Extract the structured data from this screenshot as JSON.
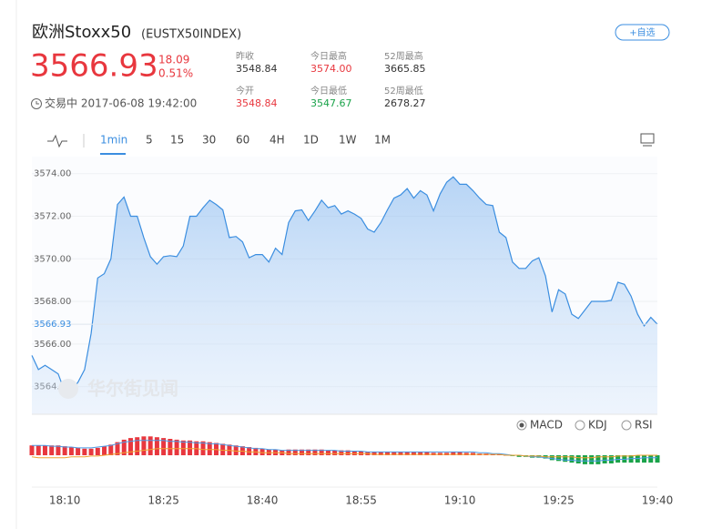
{
  "header": {
    "title": "欧洲Stoxx50",
    "code": "(EUSTX50INDEX)",
    "watch_button": "+自选",
    "price": "3566.93",
    "change": "18.09",
    "change_pct": "0.51%",
    "status": "交易中 2017-06-08 19:42:00",
    "stats": [
      {
        "label": "昨收",
        "value": "3548.84"
      },
      {
        "label": "今日最高",
        "value": "3574.00"
      },
      {
        "label": "52周最高",
        "value": "3665.85"
      },
      {
        "label": "今开",
        "value": "3548.84"
      },
      {
        "label": "今日最低",
        "value": "3547.67"
      },
      {
        "label": "52周最低",
        "value": "2678.27"
      }
    ]
  },
  "tabs": [
    "1min",
    "5",
    "15",
    "30",
    "60",
    "4H",
    "1D",
    "1W",
    "1M"
  ],
  "active_tab": 0,
  "watermark": "华尔街见闻",
  "indicators": [
    "MACD",
    "KDJ",
    "RSI"
  ],
  "active_indicator": 0,
  "chart_data": [
    {
      "type": "line",
      "color": "#3b8ee0",
      "grid": true,
      "categories": [
        null,
        null,
        null,
        null,
        null,
        "18:10",
        null,
        null,
        null,
        null,
        null,
        null,
        null,
        null,
        null,
        null,
        null,
        null,
        null,
        null,
        "18:25",
        null,
        null,
        null,
        null,
        null,
        null,
        null,
        null,
        null,
        null,
        null,
        null,
        null,
        null,
        "18:40",
        null,
        null,
        null,
        null,
        null,
        null,
        null,
        null,
        null,
        null,
        null,
        null,
        null,
        null,
        "18:55",
        null,
        null,
        null,
        null,
        null,
        null,
        null,
        null,
        null,
        null,
        null,
        null,
        null,
        null,
        "19:10",
        null,
        null,
        null,
        null,
        null,
        null,
        null,
        null,
        null,
        null,
        null,
        null,
        null,
        null,
        "19:25",
        null,
        null,
        null,
        null,
        null,
        null,
        null,
        null,
        null,
        null,
        null,
        null,
        null,
        null,
        "19:40"
      ],
      "values": [
        3565.46,
        3564.8,
        3565.0,
        3564.8,
        3564.6,
        3563.75,
        3563.8,
        3564.2,
        3564.8,
        3566.5,
        3569.1,
        3569.3,
        3570.0,
        3572.55,
        3572.9,
        3572.0,
        3572.0,
        3571.0,
        3570.1,
        3569.75,
        3570.1,
        3570.15,
        3570.1,
        3570.6,
        3572.0,
        3572.0,
        3572.4,
        3572.75,
        3572.55,
        3572.3,
        3571.0,
        3571.05,
        3570.8,
        3570.05,
        3570.2,
        3570.2,
        3569.85,
        3570.5,
        3570.2,
        3571.7,
        3572.25,
        3572.3,
        3571.8,
        3572.25,
        3572.75,
        3572.4,
        3572.5,
        3572.1,
        3572.25,
        3572.1,
        3571.9,
        3571.4,
        3571.25,
        3571.7,
        3572.3,
        3572.85,
        3573.0,
        3573.3,
        3572.85,
        3573.2,
        3573.0,
        3572.25,
        3573.05,
        3573.6,
        3573.85,
        3573.5,
        3573.5,
        3573.2,
        3572.85,
        3572.55,
        3572.5,
        3571.25,
        3571.0,
        3569.85,
        3569.55,
        3569.55,
        3569.9,
        3570.05,
        3569.2,
        3567.5,
        3568.55,
        3568.35,
        3567.4,
        3567.2,
        3567.6,
        3568.0,
        3568.0,
        3568.0,
        3568.05,
        3568.9,
        3568.8,
        3568.25,
        3567.4,
        3566.85,
        3567.25,
        3566.93
      ],
      "ylim": [
        3562.7,
        3574.8
      ],
      "yticks": [
        {
          "value": 3564,
          "label": "3564.00"
        },
        {
          "value": 3566,
          "label": "3566.00"
        },
        {
          "value": 3568,
          "label": "3568.00"
        },
        {
          "value": 3570,
          "label": "3570.00"
        },
        {
          "value": 3572,
          "label": "3572.00"
        },
        {
          "value": 3574,
          "label": "3574.00"
        }
      ],
      "last_price": {
        "value": 3566.93,
        "label": "3566.93"
      }
    },
    {
      "type": "macd",
      "up_color": "#e8373e",
      "down_color": "#1aa34a",
      "ylim": [
        -0.5,
        0.5
      ],
      "values": [
        0.12,
        0.12,
        0.12,
        0.12,
        0.12,
        0.11,
        0.1,
        0.09,
        0.08,
        0.08,
        0.09,
        0.11,
        0.13,
        0.16,
        0.19,
        0.21,
        0.22,
        0.23,
        0.23,
        0.22,
        0.21,
        0.2,
        0.19,
        0.18,
        0.18,
        0.17,
        0.17,
        0.16,
        0.15,
        0.14,
        0.13,
        0.12,
        0.11,
        0.1,
        0.09,
        0.08,
        0.07,
        0.07,
        0.06,
        0.07,
        0.07,
        0.07,
        0.07,
        0.07,
        0.07,
        0.06,
        0.06,
        0.06,
        0.06,
        0.05,
        0.05,
        0.04,
        0.04,
        0.04,
        0.04,
        0.04,
        0.04,
        0.04,
        0.04,
        0.04,
        0.04,
        0.03,
        0.03,
        0.03,
        0.04,
        0.04,
        0.03,
        0.03,
        0.02,
        0.02,
        0.01,
        0.01,
        0,
        -0.01,
        -0.02,
        -0.02,
        -0.03,
        -0.03,
        -0.04,
        -0.06,
        -0.07,
        -0.08,
        -0.09,
        -0.1,
        -0.11,
        -0.11,
        -0.11,
        -0.1,
        -0.1,
        -0.09,
        -0.09,
        -0.09,
        -0.09,
        -0.09,
        -0.09,
        -0.09
      ],
      "series": [
        {
          "color": "#4a9be6",
          "values": [
            0.12,
            0.12,
            0.12,
            0.11,
            0.11,
            0.1,
            0.1,
            0.09,
            0.09,
            0.09,
            0.1,
            0.11,
            0.12,
            0.14,
            0.16,
            0.17,
            0.18,
            0.18,
            0.18,
            0.18,
            0.18,
            0.17,
            0.17,
            0.16,
            0.16,
            0.15,
            0.15,
            0.14,
            0.14,
            0.13,
            0.12,
            0.11,
            0.1,
            0.09,
            0.08,
            0.08,
            0.07,
            0.07,
            0.06,
            0.06,
            0.06,
            0.06,
            0.06,
            0.06,
            0.06,
            0.06,
            0.06,
            0.05,
            0.05,
            0.05,
            0.05,
            0.04,
            0.04,
            0.04,
            0.04,
            0.04,
            0.04,
            0.04,
            0.04,
            0.04,
            0.04,
            0.04,
            0.04,
            0.04,
            0.04,
            0.04,
            0.04,
            0.04,
            0.03,
            0.03,
            0.02,
            0.02,
            0.01,
            0,
            0,
            -0.01,
            -0.02,
            -0.02,
            -0.03,
            -0.04,
            -0.05,
            -0.06,
            -0.06,
            -0.07,
            -0.07,
            -0.07,
            -0.07,
            -0.06,
            -0.06,
            -0.05,
            -0.05,
            -0.04,
            -0.04,
            -0.03,
            -0.03,
            -0.03
          ]
        },
        {
          "color": "#f0a030",
          "values": [
            -0.02,
            -0.03,
            -0.03,
            -0.03,
            -0.03,
            -0.03,
            -0.02,
            -0.02,
            -0.02,
            -0.01,
            -0.01,
            0,
            0.01,
            0.02,
            0.03,
            0.04,
            0.05,
            0.06,
            0.07,
            0.08,
            0.08,
            0.08,
            0.08,
            0.08,
            0.08,
            0.08,
            0.07,
            0.07,
            0.07,
            0.06,
            0.06,
            0.05,
            0.05,
            0.04,
            0.04,
            0.03,
            0.03,
            0.03,
            0.03,
            0.02,
            0.02,
            0.02,
            0.02,
            0.02,
            0.02,
            0.02,
            0.02,
            0.02,
            0.02,
            0.02,
            0.02,
            0.02,
            0.01,
            0.01,
            0.01,
            0.01,
            0.01,
            0.01,
            0.01,
            0.01,
            0.01,
            0.01,
            0.01,
            0.01,
            0.01,
            0.01,
            0.01,
            0.01,
            0.01,
            0.01,
            0.01,
            0.01,
            0,
            0,
            0,
            -0.01,
            -0.01,
            -0.01,
            -0.02,
            -0.02,
            -0.02,
            -0.02,
            -0.02,
            -0.03,
            -0.03,
            -0.03,
            -0.02,
            -0.02,
            -0.02,
            -0.01,
            -0.01,
            -0.01,
            0,
            0,
            0,
            0
          ]
        }
      ]
    }
  ]
}
